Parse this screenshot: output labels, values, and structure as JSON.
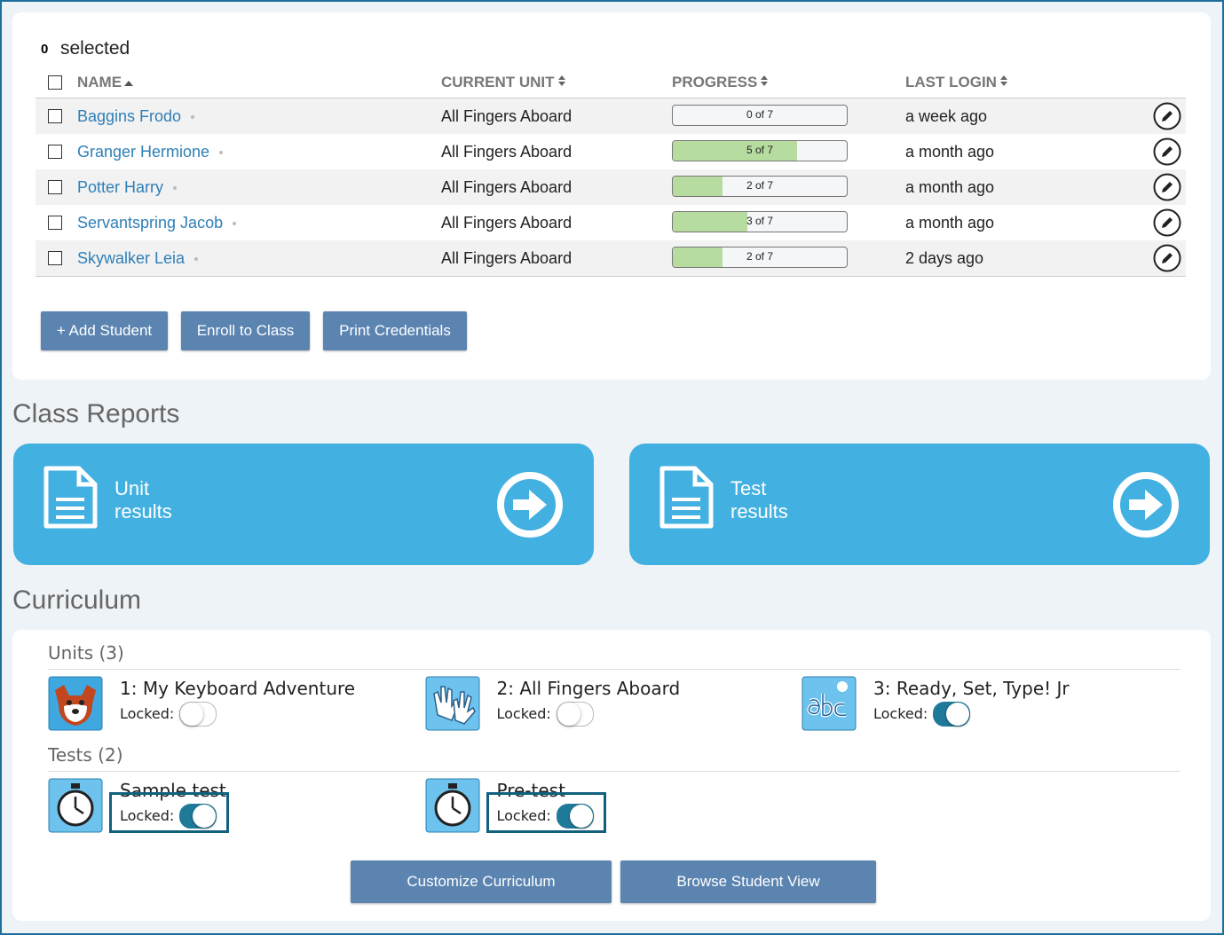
{
  "selection": {
    "count": 0,
    "label": "selected"
  },
  "table": {
    "columns": [
      "NAME",
      "CURRENT UNIT",
      "PROGRESS",
      "LAST LOGIN"
    ],
    "rows": [
      {
        "name": "Baggins Frodo",
        "unit": "All Fingers Aboard",
        "progress": {
          "done": 0,
          "total": 7,
          "label": "0 of 7"
        },
        "last_login": "a week ago"
      },
      {
        "name": "Granger Hermione",
        "unit": "All Fingers Aboard",
        "progress": {
          "done": 5,
          "total": 7,
          "label": "5 of 7"
        },
        "last_login": "a month ago"
      },
      {
        "name": "Potter Harry",
        "unit": "All Fingers Aboard",
        "progress": {
          "done": 2,
          "total": 7,
          "label": "2 of 7"
        },
        "last_login": "a month ago"
      },
      {
        "name": "Servantspring Jacob",
        "unit": "All Fingers Aboard",
        "progress": {
          "done": 3,
          "total": 7,
          "label": "3 of 7"
        },
        "last_login": "a month ago"
      },
      {
        "name": "Skywalker Leia",
        "unit": "All Fingers Aboard",
        "progress": {
          "done": 2,
          "total": 7,
          "label": "2 of 7"
        },
        "last_login": "2 days ago"
      }
    ]
  },
  "buttons": [
    "+ Add Student",
    "Enroll to Class",
    "Print Credentials"
  ],
  "class_reports": {
    "title": "Class Reports",
    "cards": [
      {
        "line1": "Unit",
        "line2": "results"
      },
      {
        "line1": "Test",
        "line2": "results"
      }
    ]
  },
  "curriculum": {
    "title": "Curriculum",
    "units": {
      "heading": "Units (3)",
      "items": [
        {
          "title": "1: My Keyboard Adventure",
          "locked_label": "Locked:",
          "locked": false
        },
        {
          "title": "2: All Fingers Aboard",
          "locked_label": "Locked:",
          "locked": false
        },
        {
          "title": "3: Ready, Set, Type! Jr",
          "locked_label": "Locked:",
          "locked": true
        }
      ]
    },
    "tests": {
      "heading": "Tests (2)",
      "items": [
        {
          "title": "Sample test",
          "locked_label": "Locked:",
          "locked": true
        },
        {
          "title": "Pre-test",
          "locked_label": "Locked:",
          "locked": true
        }
      ]
    }
  },
  "footer_buttons": [
    "Customize Curriculum",
    "Browse Student View"
  ]
}
